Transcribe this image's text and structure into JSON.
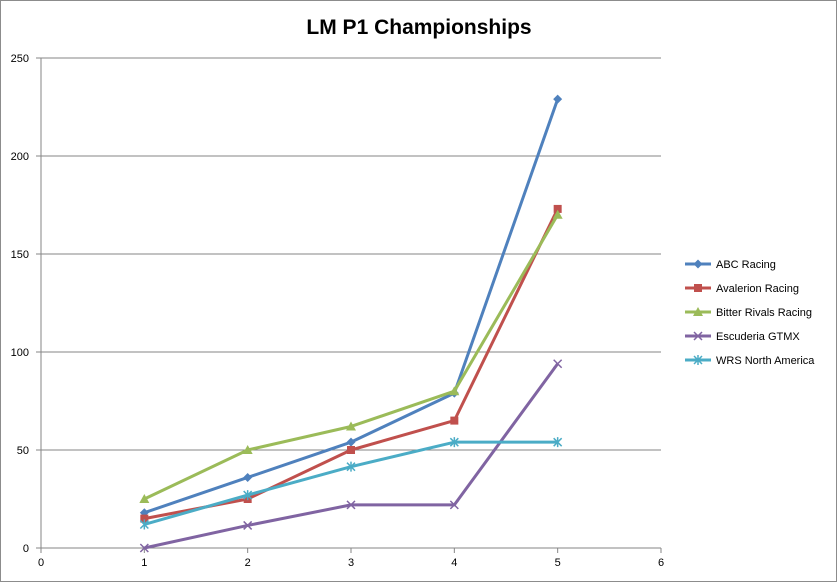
{
  "chart_data": {
    "type": "line",
    "title": "LM P1 Championships",
    "xlabel": "",
    "ylabel": "",
    "xlim": [
      0,
      6
    ],
    "ylim": [
      0,
      250
    ],
    "x_ticks": [
      "0",
      "1",
      "2",
      "3",
      "4",
      "5",
      "6"
    ],
    "y_ticks": [
      "0",
      "50",
      "100",
      "150",
      "200",
      "250"
    ],
    "grid": "horizontal",
    "legend_position": "right",
    "x": [
      1,
      2,
      3,
      4,
      5
    ],
    "series": [
      {
        "name": "ABC Racing",
        "values": [
          18,
          36,
          54,
          79,
          229
        ],
        "color": "#4F81BD",
        "marker": "diamond"
      },
      {
        "name": "Avalerion Racing",
        "values": [
          15,
          25,
          50,
          65,
          173
        ],
        "color": "#C0504D",
        "marker": "square"
      },
      {
        "name": "Bitter Rivals Racing",
        "values": [
          25,
          50,
          62,
          80,
          170
        ],
        "color": "#9BBB59",
        "marker": "triangle"
      },
      {
        "name": "Escuderia GTMX",
        "values": [
          0,
          11.5,
          22,
          22,
          94
        ],
        "color": "#8064A2",
        "marker": "x"
      },
      {
        "name": "WRS North America",
        "values": [
          12,
          27,
          41.5,
          54,
          54
        ],
        "color": "#4BACC6",
        "marker": "star"
      }
    ]
  }
}
